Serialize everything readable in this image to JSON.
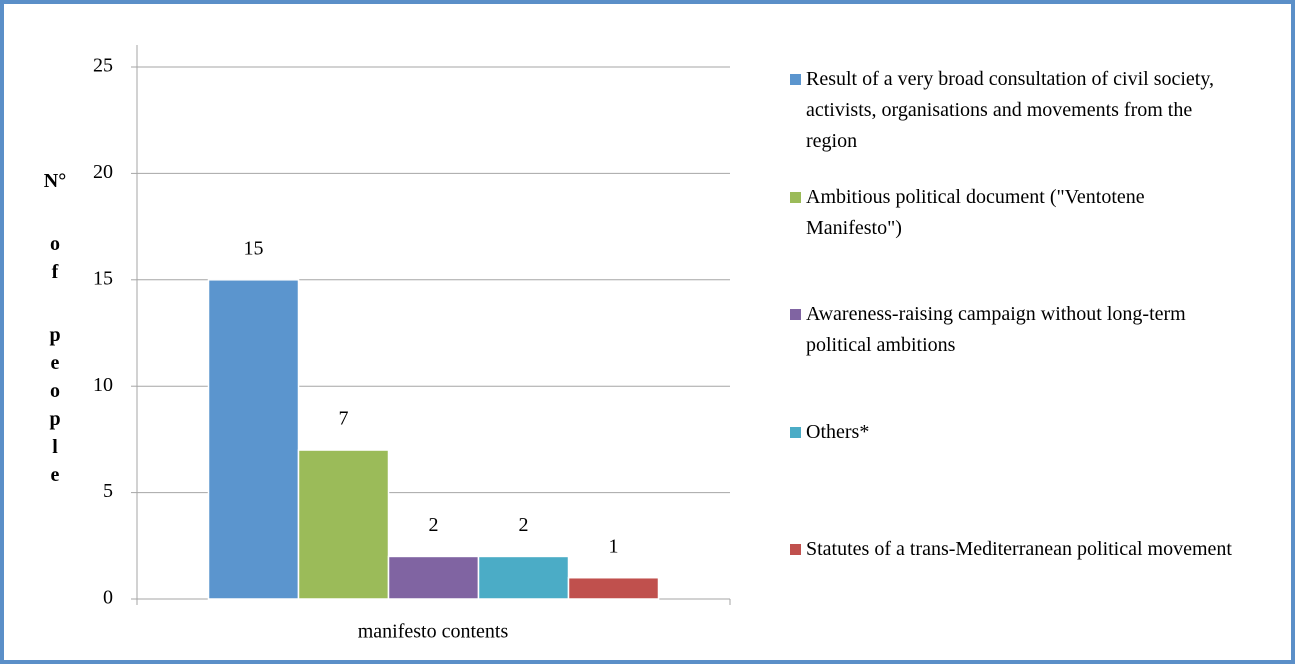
{
  "chart_data": {
    "type": "bar",
    "y_label": "N° of people",
    "x_label": "manifesto contents",
    "categories": [
      "manifesto contents"
    ],
    "series": [
      {
        "name": "Result of a very broad consultation of civil society, activists, organisations and movements from the region",
        "color": "#5b95ce",
        "values": [
          15
        ]
      },
      {
        "name": "Ambitious political document (\"Ventotene Manifesto\")",
        "color": "#9bbb59",
        "values": [
          7
        ]
      },
      {
        "name": "Awareness-raising campaign without long-term political ambitions",
        "color": "#8064a2",
        "values": [
          2
        ]
      },
      {
        "name": "Others*",
        "color": "#4bacc6",
        "values": [
          2
        ]
      },
      {
        "name": "Statutes of a trans-Mediterranean political movement",
        "color": "#c0504d",
        "values": [
          1
        ]
      }
    ],
    "ylim": [
      0,
      25
    ],
    "yticks": [
      0,
      5,
      10,
      15,
      20,
      25
    ],
    "grid": true,
    "legend": "right"
  }
}
